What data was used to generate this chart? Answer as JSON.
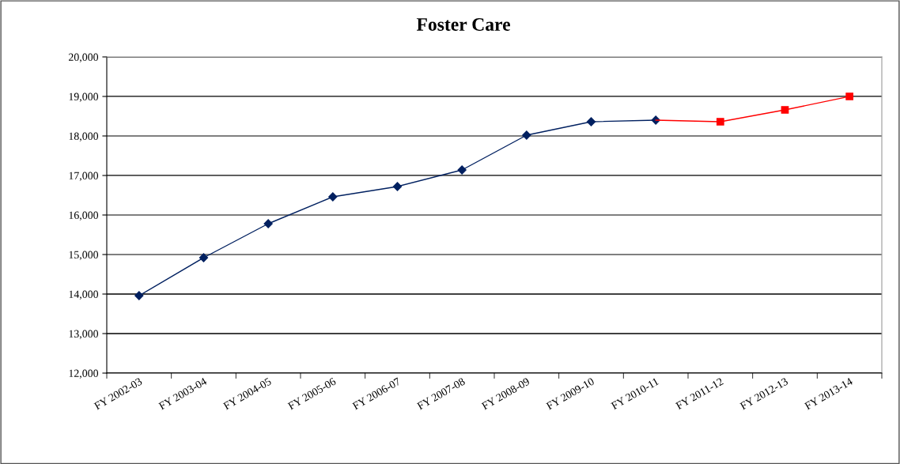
{
  "chart_data": {
    "type": "line",
    "title": "Foster Care",
    "categories": [
      "FY 2002-03",
      "FY 2003-04",
      "FY 2004-05",
      "FY 2005-06",
      "FY 2006-07",
      "FY 2007-08",
      "FY 2008-09",
      "FY 2009-10",
      "FY 2010-11",
      "FY 2011-12",
      "FY 2012-13",
      "FY 2013-14"
    ],
    "series": [
      {
        "color": "#002060",
        "marker": "diamond",
        "values": [
          13960,
          14920,
          15780,
          16460,
          16720,
          17140,
          18020,
          18360,
          18400,
          null,
          null,
          null
        ]
      },
      {
        "color": "#ff0000",
        "marker": "square",
        "values": [
          null,
          null,
          null,
          null,
          null,
          null,
          null,
          null,
          18400,
          18360,
          18660,
          19000
        ]
      }
    ],
    "ylim": [
      12000,
      20000
    ],
    "yticks": [
      {
        "value": 12000,
        "label": "12,000"
      },
      {
        "value": 13000,
        "label": "13,000"
      },
      {
        "value": 14000,
        "label": "14,000"
      },
      {
        "value": 15000,
        "label": "15,000"
      },
      {
        "value": 16000,
        "label": "16,000"
      },
      {
        "value": 17000,
        "label": "17,000"
      },
      {
        "value": 18000,
        "label": "18,000"
      },
      {
        "value": 19000,
        "label": "19,000"
      },
      {
        "value": 20000,
        "label": "20,000"
      }
    ],
    "grid": "y"
  }
}
